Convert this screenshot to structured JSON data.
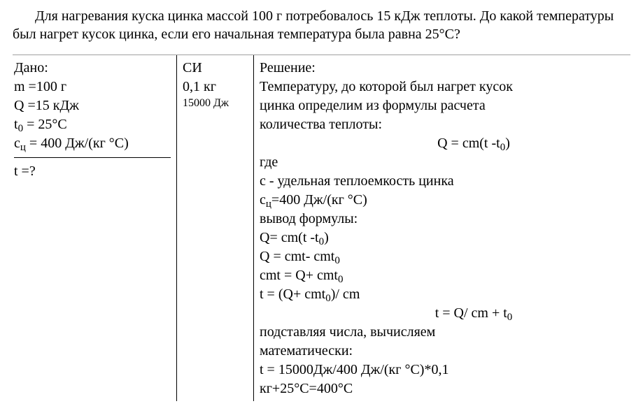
{
  "problem": {
    "text": "Для нагревания куска цинка массой 100 г потребовалось 15 кДж теплоты. До какой температуры был нагрет кусок цинка, если его начальная температура была равна 25°С?"
  },
  "given": {
    "header": "Дано:",
    "mass": "m =100 г",
    "heat": "Q =15 кДж",
    "t0_label": "t",
    "t0_sub": "0",
    "t0_val": " = 25°С",
    "c_label": "с",
    "c_sub": "ц",
    "c_val": " = 400 Дж/(кг °С)",
    "find": "t =?"
  },
  "si": {
    "header": "СИ",
    "mass": "0,1 кг",
    "heat": "15000 Дж"
  },
  "solution": {
    "header": "Решение:",
    "intro1": "Температуру, до которой был нагрет кусок",
    "intro2": "цинка определим из формулы расчета",
    "intro3": "количества теплоты:",
    "formula_main_pre": "Q = cm(t -t",
    "formula_main_sub": "0",
    "formula_main_post": ")",
    "where": "где",
    "c_def": "c - удельная теплоемкость цинка",
    "c_val_pre": "с",
    "c_val_sub": "ц",
    "c_val_post": "=400 Дж/(кг °С)",
    "deriv_label": "вывод формулы:",
    "step1_pre": "Q= cm(t -t",
    "step1_sub": "0",
    "step1_post": ")",
    "step2_pre": "Q = cmt- cmt",
    "step2_sub": "0",
    "step3_pre": "cmt = Q+ cmt",
    "step3_sub": "0",
    "step4_pre": "t = (Q+ cmt",
    "step4_sub": "0",
    "step4_post": ")/ cm",
    "step5_pre": "t = Q/ cm + t",
    "step5_sub": "0",
    "calc_label1": "подставляя числа, вычисляем",
    "calc_label2": "математически:",
    "calc1": "t = 15000Дж/400 Дж/(кг °С)*0,1",
    "calc2": "кг+25°С=400°С"
  }
}
